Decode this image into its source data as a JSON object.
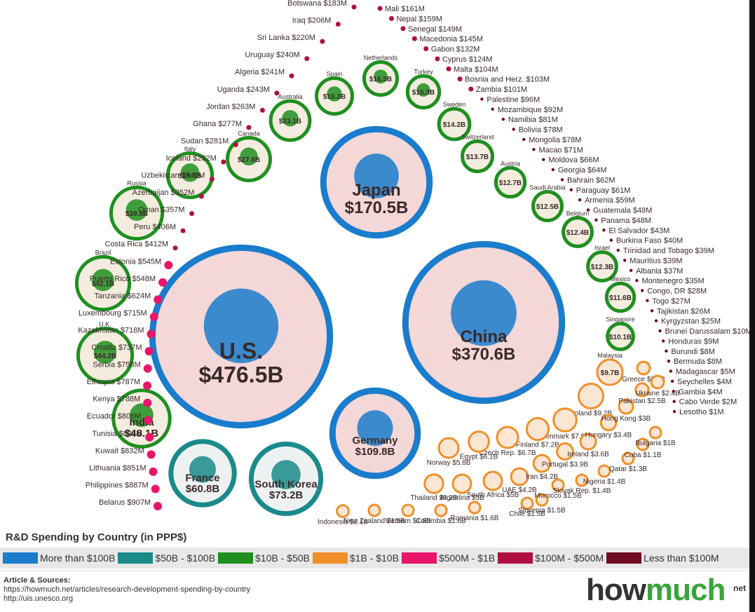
{
  "legend": {
    "title": "R&D Spending by Country (in PPP$)",
    "items": [
      {
        "label": "More than $100B",
        "color": "#1a7ccc"
      },
      {
        "label": "$50B - $100B",
        "color": "#1a8a8a"
      },
      {
        "label": "$10B - $50B",
        "color": "#1f8f1f"
      },
      {
        "label": "$1B - $10B",
        "color": "#f0902a"
      },
      {
        "label": "$500M - $1B",
        "color": "#e8156a"
      },
      {
        "label": "$100M - $500M",
        "color": "#b01040"
      },
      {
        "label": "Less than $100M",
        "color": "#6e0a22"
      }
    ]
  },
  "sources": {
    "title": "Article & Sources:",
    "line1": "https://howmuch.net/articles/research-development-spending-by-country",
    "line2": "http://uis.unesco.org"
  },
  "brand": {
    "part1": "how",
    "part2": "much",
    "suffix": "net"
  },
  "chart_data": {
    "type": "bubble",
    "title": "R&D Spending by Country (in PPP$)",
    "unit": "PPP$",
    "bubbles": [
      {
        "name": "U.S.",
        "value_label": "$476.5B",
        "value_usd_b": 476.5,
        "tier": "More than $100B"
      },
      {
        "name": "China",
        "value_label": "$370.6B",
        "value_usd_b": 370.6,
        "tier": "More than $100B"
      },
      {
        "name": "Japan",
        "value_label": "$170.5B",
        "value_usd_b": 170.5,
        "tier": "More than $100B"
      },
      {
        "name": "Germany",
        "value_label": "$109.8B",
        "value_usd_b": 109.8,
        "tier": "More than $100B"
      },
      {
        "name": "South Korea",
        "value_label": "$73.2B",
        "value_usd_b": 73.2,
        "tier": "$50B - $100B"
      },
      {
        "name": "France",
        "value_label": "$60.8B",
        "value_usd_b": 60.8,
        "tier": "$50B - $100B"
      },
      {
        "name": "India",
        "value_label": "$48.1B",
        "value_usd_b": 48.1,
        "tier": "$10B - $50B"
      },
      {
        "name": "U.K.",
        "value_label": "$44.2B",
        "value_usd_b": 44.2,
        "tier": "$10B - $50B"
      },
      {
        "name": "Brazil",
        "value_label": "$42.1B",
        "value_usd_b": 42.1,
        "tier": "$10B - $50B"
      },
      {
        "name": "Russia",
        "value_label": "$39.8B",
        "value_usd_b": 39.8,
        "tier": "$10B - $50B"
      },
      {
        "name": "Italy",
        "value_label": "$29.6B",
        "value_usd_b": 29.6,
        "tier": "$10B - $50B"
      },
      {
        "name": "Canada",
        "value_label": "$27.6B",
        "value_usd_b": 27.6,
        "tier": "$10B - $50B"
      },
      {
        "name": "Australia",
        "value_label": "$23.1B",
        "value_usd_b": 23.1,
        "tier": "$10B - $50B"
      },
      {
        "name": "Spain",
        "value_label": "$19.3B",
        "value_usd_b": 19.3,
        "tier": "$10B - $50B"
      },
      {
        "name": "Netherlands",
        "value_label": "$16.5B",
        "value_usd_b": 16.5,
        "tier": "$10B - $50B"
      },
      {
        "name": "Turkey",
        "value_label": "$15.3B",
        "value_usd_b": 15.3,
        "tier": "$10B - $50B"
      },
      {
        "name": "Sweden",
        "value_label": "$14.2B",
        "value_usd_b": 14.2,
        "tier": "$10B - $50B"
      },
      {
        "name": "Switzerland",
        "value_label": "$13.7B",
        "value_usd_b": 13.7,
        "tier": "$10B - $50B"
      },
      {
        "name": "Austria",
        "value_label": "$12.7B",
        "value_usd_b": 12.7,
        "tier": "$10B - $50B"
      },
      {
        "name": "Saudi Arabia",
        "value_label": "$12.5B",
        "value_usd_b": 12.5,
        "tier": "$10B - $50B"
      },
      {
        "name": "Belgium",
        "value_label": "$12.4B",
        "value_usd_b": 12.4,
        "tier": "$10B - $50B"
      },
      {
        "name": "Israel",
        "value_label": "$12.3B",
        "value_usd_b": 12.3,
        "tier": "$10B - $50B"
      },
      {
        "name": "Mexico",
        "value_label": "$11.6B",
        "value_usd_b": 11.6,
        "tier": "$10B - $50B"
      },
      {
        "name": "Singapore",
        "value_label": "$10.1B",
        "value_usd_b": 10.1,
        "tier": "$10B - $50B"
      },
      {
        "name": "Malaysia",
        "value_label": "$9.7B",
        "value_usd_b": 9.7,
        "tier": "$1B - $10B"
      },
      {
        "name": "Poland",
        "value_label": "$9.2B",
        "value_usd_b": 9.2,
        "tier": "$1B - $10B"
      },
      {
        "name": "Denmark",
        "value_label": "$7.9B",
        "value_usd_b": 7.9,
        "tier": "$1B - $10B"
      },
      {
        "name": "Finland",
        "value_label": "$7.2B",
        "value_usd_b": 7.2,
        "tier": "$1B - $10B"
      },
      {
        "name": "Czech Rep.",
        "value_label": "$6.7B",
        "value_usd_b": 6.7,
        "tier": "$1B - $10B"
      },
      {
        "name": "Egypt",
        "value_label": "$6.1B",
        "value_usd_b": 6.1,
        "tier": "$1B - $10B"
      },
      {
        "name": "Norway",
        "value_label": "$5.8B",
        "value_usd_b": 5.8,
        "tier": "$1B - $10B"
      },
      {
        "name": "Thailand",
        "value_label": "$5.2B",
        "value_usd_b": 5.2,
        "tier": "$1B - $10B"
      },
      {
        "name": "Argentina",
        "value_label": "$5B",
        "value_usd_b": 5.0,
        "tier": "$1B - $10B"
      },
      {
        "name": "South Africa",
        "value_label": "$5B",
        "value_usd_b": 5.0,
        "tier": "$1B - $10B"
      },
      {
        "name": "UAE",
        "value_label": "$4.2B",
        "value_usd_b": 4.2,
        "tier": "$1B - $10B"
      },
      {
        "name": "Iran",
        "value_label": "$4.2B",
        "value_usd_b": 4.2,
        "tier": "$1B - $10B"
      },
      {
        "name": "Portugal",
        "value_label": "$3.9B",
        "value_usd_b": 3.9,
        "tier": "$1B - $10B"
      },
      {
        "name": "Ireland",
        "value_label": "$3.6B",
        "value_usd_b": 3.6,
        "tier": "$1B - $10B"
      },
      {
        "name": "Hungary",
        "value_label": "$3.4B",
        "value_usd_b": 3.4,
        "tier": "$1B - $10B"
      },
      {
        "name": "Hong Kong",
        "value_label": "$3B",
        "value_usd_b": 3.0,
        "tier": "$1B - $10B"
      },
      {
        "name": "Pakistan",
        "value_label": "$2.5B",
        "value_usd_b": 2.5,
        "tier": "$1B - $10B"
      },
      {
        "name": "Greece",
        "value_label": "$2.4B",
        "value_usd_b": 2.4,
        "tier": "$1B - $10B"
      },
      {
        "name": "Ukraine",
        "value_label": "$2.4B",
        "value_usd_b": 2.4,
        "tier": "$1B - $10B"
      },
      {
        "name": "Indonesia",
        "value_label": "$2.1B",
        "value_usd_b": 2.1,
        "tier": "$1B - $10B"
      },
      {
        "name": "New Zealand",
        "value_label": "$1.9B",
        "value_usd_b": 1.9,
        "tier": "$1B - $10B"
      },
      {
        "name": "Vietnam",
        "value_label": "$1.8B",
        "value_usd_b": 1.8,
        "tier": "$1B - $10B"
      },
      {
        "name": "Colombia",
        "value_label": "$1.6B",
        "value_usd_b": 1.6,
        "tier": "$1B - $10B"
      },
      {
        "name": "Romania",
        "value_label": "$1.6B",
        "value_usd_b": 1.6,
        "tier": "$1B - $10B"
      },
      {
        "name": "Chile",
        "value_label": "$1.5B",
        "value_usd_b": 1.5,
        "tier": "$1B - $10B"
      },
      {
        "name": "Slovenia",
        "value_label": "$1.5B",
        "value_usd_b": 1.5,
        "tier": "$1B - $10B"
      },
      {
        "name": "Morocco",
        "value_label": "$1.5B",
        "value_usd_b": 1.5,
        "tier": "$1B - $10B"
      },
      {
        "name": "Slovak Rep.",
        "value_label": "$1.4B",
        "value_usd_b": 1.4,
        "tier": "$1B - $10B"
      },
      {
        "name": "Nigeria",
        "value_label": "$1.4B",
        "value_usd_b": 1.4,
        "tier": "$1B - $10B"
      },
      {
        "name": "Qatar",
        "value_label": "$1.3B",
        "value_usd_b": 1.3,
        "tier": "$1B - $10B"
      },
      {
        "name": "Cuba",
        "value_label": "$1.1B",
        "value_usd_b": 1.1,
        "tier": "$1B - $10B"
      },
      {
        "name": "Bulgaria",
        "value_label": "$1B",
        "value_usd_b": 1.0,
        "tier": "$1B - $10B"
      }
    ],
    "dots_left": [
      {
        "name": "Belarus",
        "value_label": "$907M",
        "tier": "$500M - $1B"
      },
      {
        "name": "Philippines",
        "value_label": "$887M",
        "tier": "$500M - $1B"
      },
      {
        "name": "Lithuania",
        "value_label": "$851M",
        "tier": "$500M - $1B"
      },
      {
        "name": "Kuwait",
        "value_label": "$832M",
        "tier": "$500M - $1B"
      },
      {
        "name": "Tunisia",
        "value_label": "$828M",
        "tier": "$500M - $1B"
      },
      {
        "name": "Ecuador",
        "value_label": "$806M",
        "tier": "$500M - $1B"
      },
      {
        "name": "Kenya",
        "value_label": "$788M",
        "tier": "$500M - $1B"
      },
      {
        "name": "Ethiopia",
        "value_label": "$787M",
        "tier": "$500M - $1B"
      },
      {
        "name": "Serbia",
        "value_label": "$758M",
        "tier": "$500M - $1B"
      },
      {
        "name": "Croatia",
        "value_label": "$737M",
        "tier": "$500M - $1B"
      },
      {
        "name": "Kazakhstan",
        "value_label": "$718M",
        "tier": "$500M - $1B"
      },
      {
        "name": "Luxembourg",
        "value_label": "$715M",
        "tier": "$500M - $1B"
      },
      {
        "name": "Tanzania",
        "value_label": "$624M",
        "tier": "$500M - $1B"
      },
      {
        "name": "Puerto Rico",
        "value_label": "$548M",
        "tier": "$500M - $1B"
      },
      {
        "name": "Estonia",
        "value_label": "$545M",
        "tier": "$500M - $1B"
      },
      {
        "name": "Costa Rica",
        "value_label": "$412M",
        "tier": "$100M - $500M"
      },
      {
        "name": "Peru",
        "value_label": "$406M",
        "tier": "$100M - $500M"
      },
      {
        "name": "Oman",
        "value_label": "$357M",
        "tier": "$100M - $500M"
      },
      {
        "name": "Azerbaijan",
        "value_label": "$352M",
        "tier": "$100M - $500M"
      },
      {
        "name": "Uzbekistan",
        "value_label": "$345M",
        "tier": "$100M - $500M"
      },
      {
        "name": "Iceland",
        "value_label": "$292M",
        "tier": "$100M - $500M"
      },
      {
        "name": "Sudan",
        "value_label": "$281M",
        "tier": "$100M - $500M"
      },
      {
        "name": "Ghana",
        "value_label": "$277M",
        "tier": "$100M - $500M"
      },
      {
        "name": "Jordan",
        "value_label": "$263M",
        "tier": "$100M - $500M"
      },
      {
        "name": "Uganda",
        "value_label": "$243M",
        "tier": "$100M - $500M"
      },
      {
        "name": "Algeria",
        "value_label": "$241M",
        "tier": "$100M - $500M"
      },
      {
        "name": "Uruguay",
        "value_label": "$240M",
        "tier": "$100M - $500M"
      },
      {
        "name": "Sri Lanka",
        "value_label": "$220M",
        "tier": "$100M - $500M"
      },
      {
        "name": "Iraq",
        "value_label": "$206M",
        "tier": "$100M - $500M"
      },
      {
        "name": "Botswana",
        "value_label": "$183M",
        "tier": "$100M - $500M"
      }
    ],
    "dots_right": [
      {
        "name": "Mali",
        "value_label": "$161M",
        "tier": "$100M - $500M"
      },
      {
        "name": "Nepal",
        "value_label": "$159M",
        "tier": "$100M - $500M"
      },
      {
        "name": "Senegal",
        "value_label": "$149M",
        "tier": "$100M - $500M"
      },
      {
        "name": "Macedonia",
        "value_label": "$145M",
        "tier": "$100M - $500M"
      },
      {
        "name": "Gabon",
        "value_label": "$132M",
        "tier": "$100M - $500M"
      },
      {
        "name": "Cyprus",
        "value_label": "$124M",
        "tier": "$100M - $500M"
      },
      {
        "name": "Malta",
        "value_label": "$104M",
        "tier": "$100M - $500M"
      },
      {
        "name": "Bosnia and Herz.",
        "value_label": "$103M",
        "tier": "$100M - $500M"
      },
      {
        "name": "Zambia",
        "value_label": "$101M",
        "tier": "$100M - $500M"
      },
      {
        "name": "Palestine",
        "value_label": "$96M",
        "tier": "Less than $100M"
      },
      {
        "name": "Mozambique",
        "value_label": "$92M",
        "tier": "Less than $100M"
      },
      {
        "name": "Namibia",
        "value_label": "$81M",
        "tier": "Less than $100M"
      },
      {
        "name": "Bolivia",
        "value_label": "$78M",
        "tier": "Less than $100M"
      },
      {
        "name": "Mongolia",
        "value_label": "$78M",
        "tier": "Less than $100M"
      },
      {
        "name": "Macao",
        "value_label": "$71M",
        "tier": "Less than $100M"
      },
      {
        "name": "Moldova",
        "value_label": "$66M",
        "tier": "Less than $100M"
      },
      {
        "name": "Georgia",
        "value_label": "$64M",
        "tier": "Less than $100M"
      },
      {
        "name": "Bahrain",
        "value_label": "$62M",
        "tier": "Less than $100M"
      },
      {
        "name": "Paraguay",
        "value_label": "$61M",
        "tier": "Less than $100M"
      },
      {
        "name": "Armenia",
        "value_label": "$59M",
        "tier": "Less than $100M"
      },
      {
        "name": "Guatemala",
        "value_label": "$48M",
        "tier": "Less than $100M"
      },
      {
        "name": "Panama",
        "value_label": "$48M",
        "tier": "Less than $100M"
      },
      {
        "name": "El Salvador",
        "value_label": "$43M",
        "tier": "Less than $100M"
      },
      {
        "name": "Burkina Faso",
        "value_label": "$40M",
        "tier": "Less than $100M"
      },
      {
        "name": "Trinidad and Tobago",
        "value_label": "$39M",
        "tier": "Less than $100M"
      },
      {
        "name": "Mauritius",
        "value_label": "$39M",
        "tier": "Less than $100M"
      },
      {
        "name": "Albania",
        "value_label": "$37M",
        "tier": "Less than $100M"
      },
      {
        "name": "Montenegro",
        "value_label": "$35M",
        "tier": "Less than $100M"
      },
      {
        "name": "Congo, DR",
        "value_label": "$28M",
        "tier": "Less than $100M"
      },
      {
        "name": "Togo",
        "value_label": "$27M",
        "tier": "Less than $100M"
      },
      {
        "name": "Tajikistan",
        "value_label": "$26M",
        "tier": "Less than $100M"
      },
      {
        "name": "Kyrgyzstan",
        "value_label": "$25M",
        "tier": "Less than $100M"
      },
      {
        "name": "Brunei Darussalam",
        "value_label": "$10M",
        "tier": "Less than $100M"
      },
      {
        "name": "Honduras",
        "value_label": "$9M",
        "tier": "Less than $100M"
      },
      {
        "name": "Burundi",
        "value_label": "$8M",
        "tier": "Less than $100M"
      },
      {
        "name": "Bermuda",
        "value_label": "$8M",
        "tier": "Less than $100M"
      },
      {
        "name": "Madagascar",
        "value_label": "$5M",
        "tier": "Less than $100M"
      },
      {
        "name": "Seychelles",
        "value_label": "$4M",
        "tier": "Less than $100M"
      },
      {
        "name": "Gambia",
        "value_label": "$4M",
        "tier": "Less than $100M"
      },
      {
        "name": "Cabo Verde",
        "value_label": "$2M",
        "tier": "Less than $100M"
      },
      {
        "name": "Lesotho",
        "value_label": "$1M",
        "tier": "Less than $100M"
      }
    ]
  }
}
